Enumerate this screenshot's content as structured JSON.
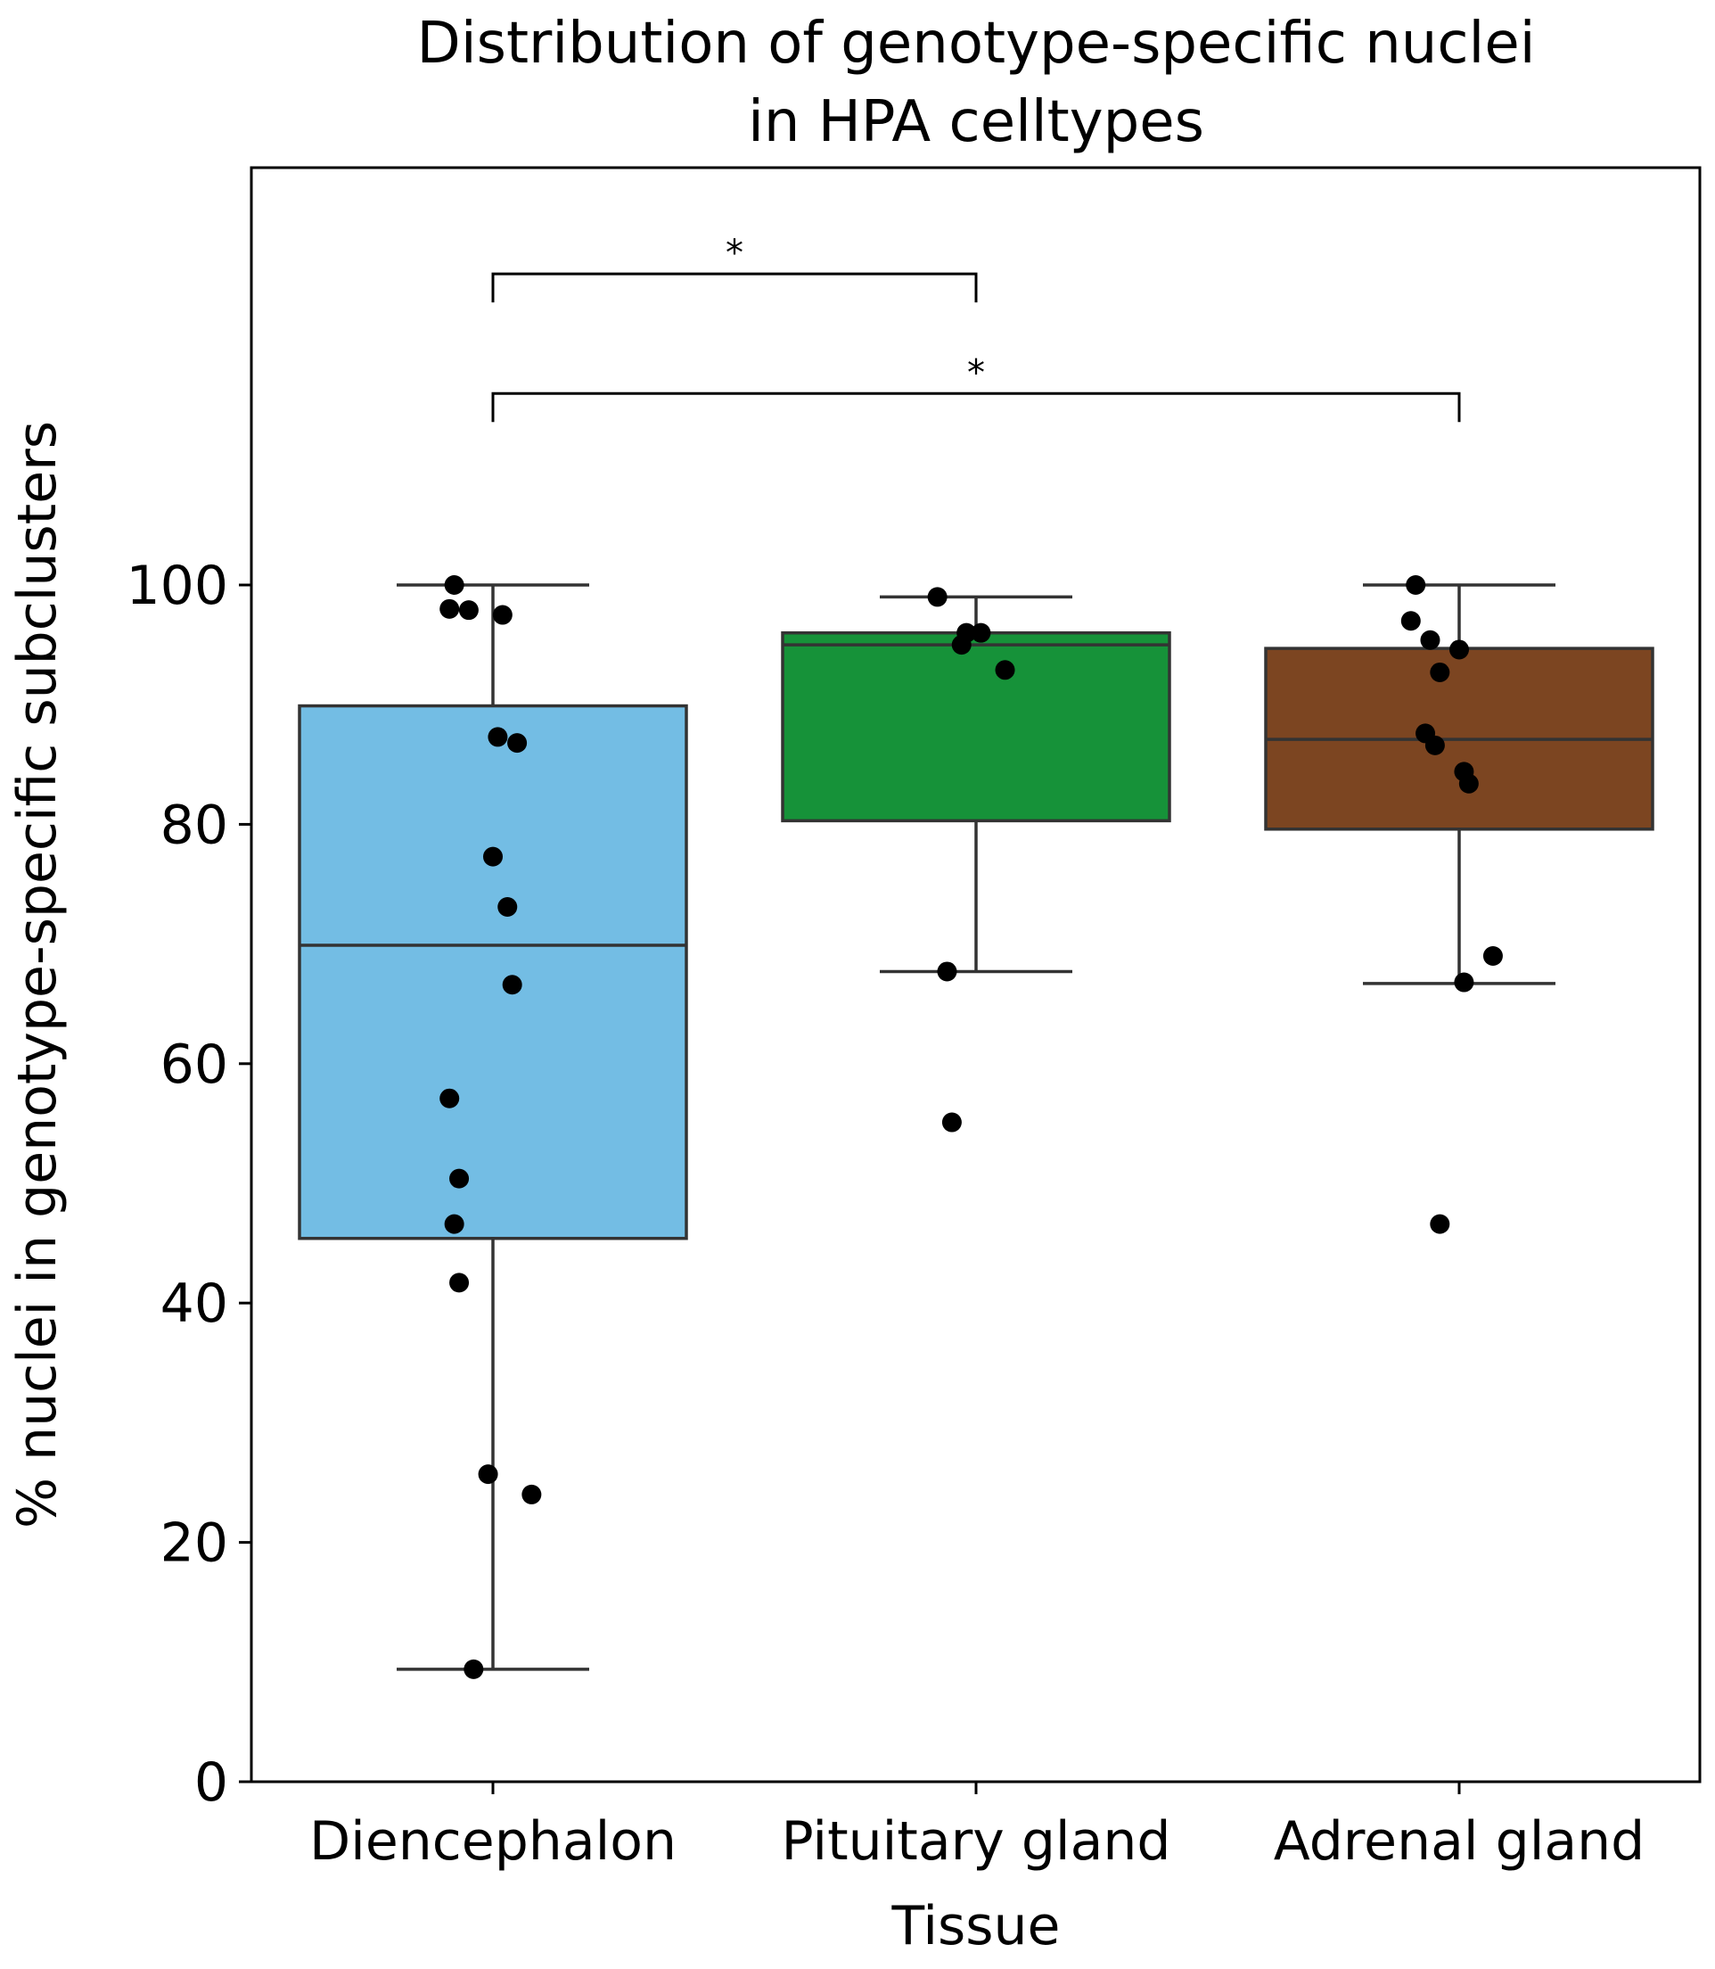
{
  "chart_data": {
    "type": "box",
    "title_lines": [
      "Distribution of genotype-specific nuclei",
      "in HPA celltypes"
    ],
    "xlabel": "Tissue",
    "ylabel": "% nuclei in genotype-specific subclusters",
    "ylim": [
      0,
      135
    ],
    "yticks": [
      0,
      20,
      40,
      60,
      80,
      100
    ],
    "categories": [
      "Diencephalon",
      "Pituitary gland",
      "Adrenal gland"
    ],
    "colors": [
      "#73bde4",
      "#169239",
      "#7c4521"
    ],
    "edge_color": "#333333",
    "point_color": "#000000",
    "boxes": [
      {
        "category": "Diencephalon",
        "q1": 45.4,
        "median": 69.9,
        "q3": 89.9,
        "whisker_low": 9.4,
        "whisker_high": 100.0
      },
      {
        "category": "Pituitary gland",
        "q1": 80.3,
        "median": 95.0,
        "q3": 96.0,
        "whisker_low": 67.7,
        "whisker_high": 99.0
      },
      {
        "category": "Adrenal gland",
        "q1": 79.6,
        "median": 87.1,
        "q3": 94.7,
        "whisker_low": 66.7,
        "whisker_high": 100.0
      }
    ],
    "points": [
      [
        100.0,
        98.0,
        97.9,
        97.5,
        87.3,
        86.8,
        77.3,
        73.1,
        66.6,
        57.1,
        50.4,
        46.6,
        41.7,
        25.7,
        24.0,
        9.4
      ],
      [
        99.0,
        96.0,
        96.0,
        95.0,
        92.9,
        67.7,
        55.1
      ],
      [
        100.0,
        97.0,
        95.4,
        94.6,
        92.7,
        87.6,
        86.6,
        84.4,
        83.4,
        69.0,
        66.8,
        46.6
      ]
    ],
    "point_offsets": [
      [
        -0.08,
        -0.09,
        -0.05,
        0.02,
        0.01,
        0.05,
        0.0,
        0.03,
        0.04,
        -0.09,
        -0.07,
        -0.08,
        -0.07,
        -0.01,
        0.08,
        -0.04
      ],
      [
        -0.08,
        -0.02,
        0.01,
        -0.03,
        0.06,
        -0.06,
        -0.05
      ],
      [
        -0.09,
        -0.1,
        -0.06,
        0.0,
        -0.04,
        -0.07,
        -0.05,
        0.01,
        0.02,
        0.07,
        0.01,
        -0.04
      ]
    ],
    "significance": [
      {
        "from": "Diencephalon",
        "to": "Pituitary gland",
        "label": "*"
      },
      {
        "from": "Diencephalon",
        "to": "Adrenal gland",
        "label": "*"
      }
    ]
  }
}
